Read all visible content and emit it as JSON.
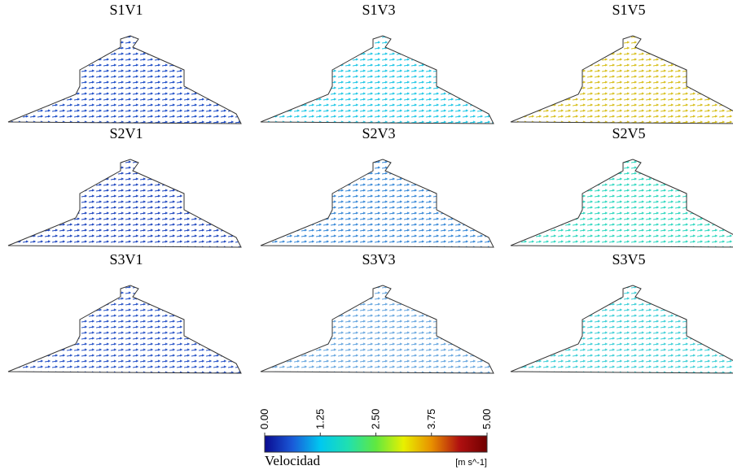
{
  "panels": [
    {
      "title": "S1V1",
      "arrow_color": "#1f4fc8"
    },
    {
      "title": "S1V3",
      "arrow_color": "#22c8e6"
    },
    {
      "title": "S1V5",
      "arrow_color": "#d8c020"
    },
    {
      "title": "S2V1",
      "arrow_color": "#2048c0"
    },
    {
      "title": "S2V3",
      "arrow_color": "#3a8ad8"
    },
    {
      "title": "S2V5",
      "arrow_color": "#30d8c0"
    },
    {
      "title": "S3V1",
      "arrow_color": "#2a55c8"
    },
    {
      "title": "S3V3",
      "arrow_color": "#6aa8e0"
    },
    {
      "title": "S3V5",
      "arrow_color": "#40d0d8"
    }
  ],
  "colorbar": {
    "label": "Velocidad",
    "unit": "[m s^-1]",
    "lim": [
      0,
      5
    ],
    "ticks": [
      {
        "value": 0,
        "label": "0.00"
      },
      {
        "value": 1.25,
        "label": "1.25"
      },
      {
        "value": 2.5,
        "label": "2.50"
      },
      {
        "value": 3.75,
        "label": "3.75"
      },
      {
        "value": 5,
        "label": "5.00"
      }
    ],
    "colors": [
      "#0a0a90",
      "#1a5ad8",
      "#00c8f0",
      "#20e0b0",
      "#60e840",
      "#e8f000",
      "#e89000",
      "#b01010",
      "#700000"
    ]
  }
}
